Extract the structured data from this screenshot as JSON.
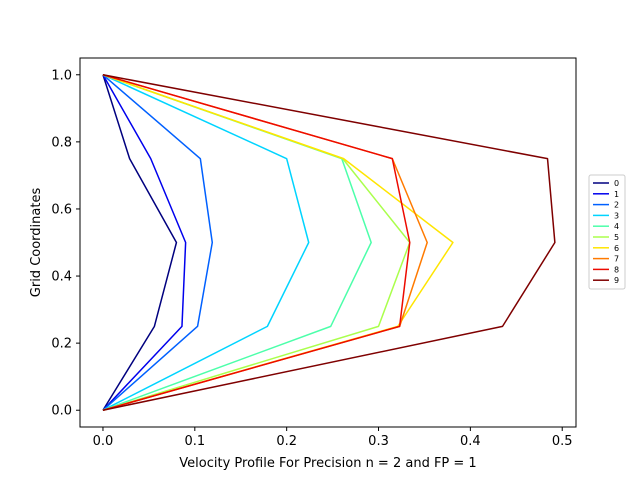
{
  "chart_data": {
    "type": "line",
    "title": "",
    "xlabel": "Velocity Profile For Precision n = 2 and FP = 1",
    "ylabel": "Grid Coordinates",
    "xlim": [
      -0.025,
      0.515
    ],
    "ylim": [
      -0.05,
      1.05
    ],
    "xticks": [
      0.0,
      0.1,
      0.2,
      0.3,
      0.4,
      0.5
    ],
    "xtick_labels": [
      "0.0",
      "0.1",
      "0.2",
      "0.3",
      "0.4",
      "0.5"
    ],
    "yticks": [
      0.0,
      0.2,
      0.4,
      0.6,
      0.8,
      1.0
    ],
    "ytick_labels": [
      "0.0",
      "0.2",
      "0.4",
      "0.6",
      "0.8",
      "1.0"
    ],
    "grid": false,
    "legend_position": "right",
    "y": [
      0.0,
      0.25,
      0.5,
      0.75,
      1.0
    ],
    "series": [
      {
        "name": "0",
        "color": "#00007f",
        "x": [
          0.0,
          0.056,
          0.08,
          0.029,
          0.0
        ]
      },
      {
        "name": "1",
        "color": "#0000ed",
        "x": [
          0.0,
          0.086,
          0.09,
          0.052,
          0.0
        ]
      },
      {
        "name": "2",
        "color": "#0060ff",
        "x": [
          0.0,
          0.103,
          0.119,
          0.106,
          0.0
        ]
      },
      {
        "name": "3",
        "color": "#00d4ff",
        "x": [
          0.0,
          0.179,
          0.224,
          0.2,
          0.0
        ]
      },
      {
        "name": "4",
        "color": "#4cffaa",
        "x": [
          0.0,
          0.248,
          0.292,
          0.26,
          0.0
        ]
      },
      {
        "name": "5",
        "color": "#aaff4c",
        "x": [
          0.0,
          0.3,
          0.334,
          0.261,
          0.0
        ]
      },
      {
        "name": "6",
        "color": "#ffe500",
        "x": [
          0.0,
          0.321,
          0.381,
          0.262,
          0.0
        ]
      },
      {
        "name": "7",
        "color": "#ff7a00",
        "x": [
          0.0,
          0.323,
          0.353,
          0.315,
          0.0
        ]
      },
      {
        "name": "8",
        "color": "#ed0a00",
        "x": [
          0.0,
          0.323,
          0.334,
          0.315,
          0.0
        ]
      },
      {
        "name": "9",
        "color": "#7f0000",
        "x": [
          0.0,
          0.435,
          0.492,
          0.484,
          0.0
        ]
      }
    ]
  }
}
